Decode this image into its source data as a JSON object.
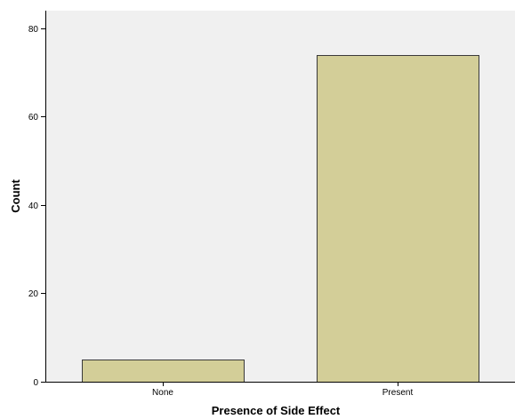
{
  "chart_data": {
    "type": "bar",
    "categories": [
      "None",
      "Present"
    ],
    "values": [
      5,
      74
    ],
    "xlabel": "Presence of Side Effect",
    "ylabel": "Count",
    "ylim": [
      0,
      84
    ],
    "yticks": [
      0,
      20,
      40,
      60,
      80
    ],
    "grid": false,
    "legend": "none",
    "colors": {
      "plot_background": "#f0f0f0",
      "bar_fill": "#d3ce98",
      "bar_stroke": "#3a3a3a",
      "axis": "#000000"
    }
  }
}
